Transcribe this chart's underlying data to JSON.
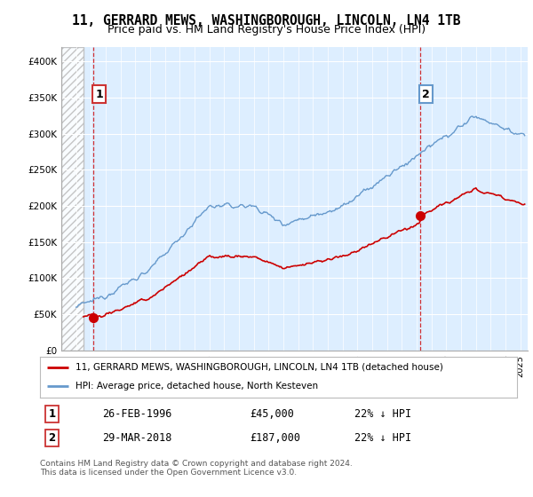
{
  "title": "11, GERRARD MEWS, WASHINGBOROUGH, LINCOLN, LN4 1TB",
  "subtitle": "Price paid vs. HM Land Registry's House Price Index (HPI)",
  "ylim": [
    0,
    420000
  ],
  "yticks": [
    0,
    50000,
    100000,
    150000,
    200000,
    250000,
    300000,
    350000,
    400000
  ],
  "ytick_labels": [
    "£0",
    "£50K",
    "£100K",
    "£150K",
    "£200K",
    "£250K",
    "£300K",
    "£350K",
    "£400K"
  ],
  "xlim_start": 1994.0,
  "xlim_end": 2025.5,
  "hatch_end": 1995.5,
  "blue_line_color": "#6699cc",
  "red_line_color": "#cc0000",
  "sale1_x": 1996.15,
  "sale1_y": 45000,
  "sale1_label": "1",
  "sale1_date": "26-FEB-1996",
  "sale1_price": "£45,000",
  "sale1_hpi": "22% ↓ HPI",
  "sale2_x": 2018.23,
  "sale2_y": 187000,
  "sale2_label": "2",
  "sale2_date": "29-MAR-2018",
  "sale2_price": "£187,000",
  "sale2_hpi": "22% ↓ HPI",
  "legend_line1": "11, GERRARD MEWS, WASHINGBOROUGH, LINCOLN, LN4 1TB (detached house)",
  "legend_line2": "HPI: Average price, detached house, North Kesteven",
  "footer": "Contains HM Land Registry data © Crown copyright and database right 2024.\nThis data is licensed under the Open Government Licence v3.0.",
  "plot_bg_color": "#ddeeff",
  "grid_color": "#ffffff",
  "title_fontsize": 10.5,
  "subtitle_fontsize": 9
}
